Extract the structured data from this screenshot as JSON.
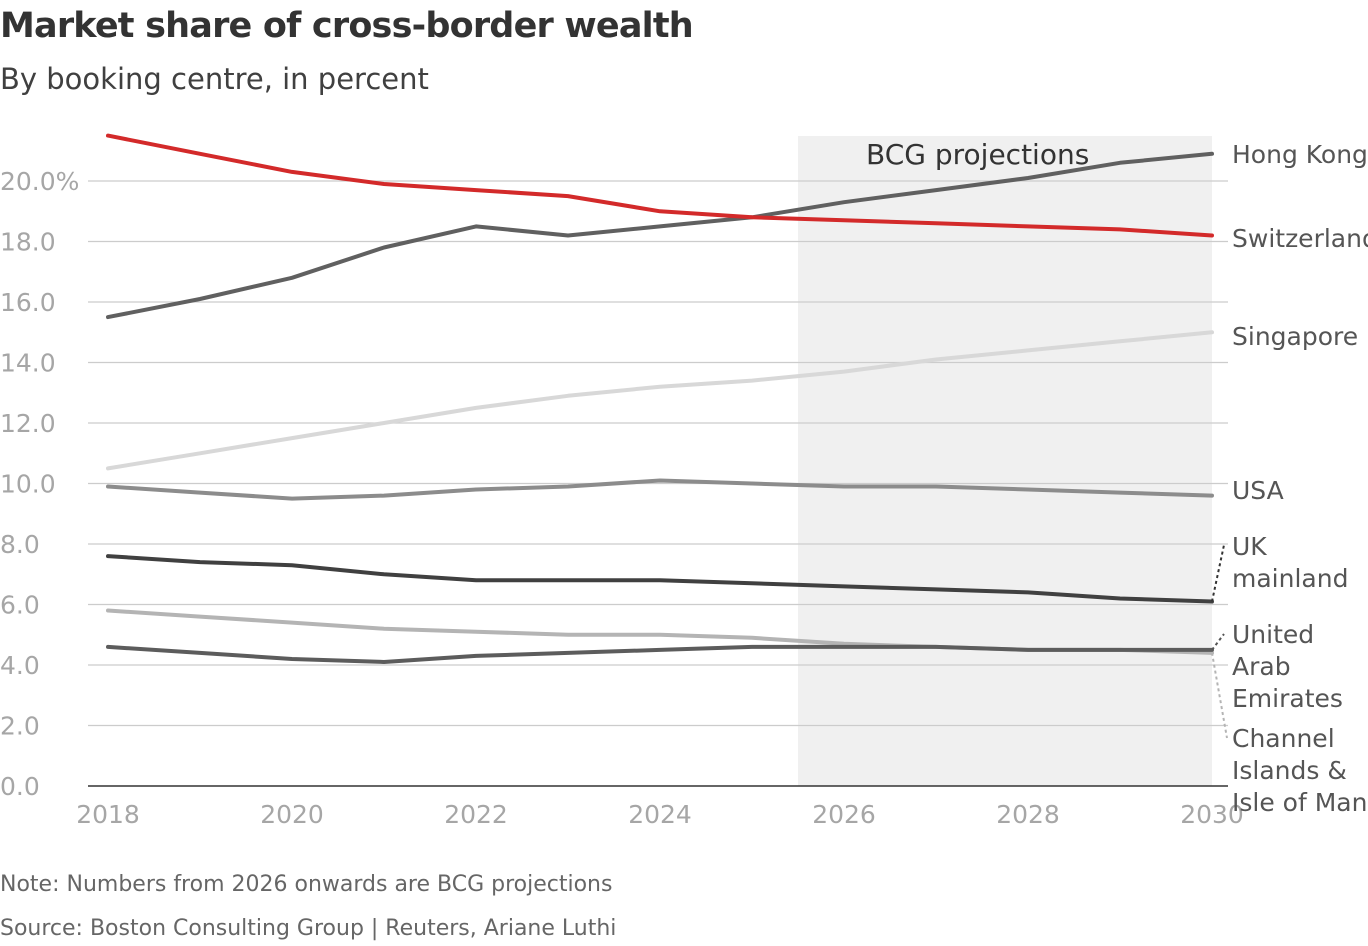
{
  "title": "Market share of cross-border wealth",
  "subtitle": "By booking centre, in percent",
  "note": "Note: Numbers from 2026 onwards are BCG projections",
  "source": "Source: Boston Consulting Group | Reuters, Ariane Luthi",
  "chart_data": {
    "type": "line",
    "x": [
      2018,
      2019,
      2020,
      2021,
      2022,
      2023,
      2024,
      2025,
      2026,
      2027,
      2028,
      2029,
      2030
    ],
    "x_ticks": [
      "2018",
      "2020",
      "2022",
      "2024",
      "2026",
      "2028",
      "2030"
    ],
    "y_ticks": [
      "0.0",
      "2.0",
      "4.0",
      "6.0",
      "8.0",
      "10.0",
      "12.0",
      "14.0",
      "16.0",
      "18.0",
      "20.0%"
    ],
    "ylim": [
      0,
      20.7
    ],
    "xlim": [
      2018,
      2030
    ],
    "grid": true,
    "projection_band": {
      "from": 2025.5,
      "to": 2030,
      "label": "BCG projections",
      "color": "#f0f0f0"
    },
    "series": [
      {
        "name": "Hong Kong",
        "color": "#606060",
        "values": [
          15.5,
          16.1,
          16.8,
          17.8,
          18.5,
          18.2,
          18.5,
          18.8,
          19.3,
          19.7,
          20.1,
          20.6,
          20.9
        ]
      },
      {
        "name": "Switzerland",
        "color": "#d32a2a",
        "values": [
          21.5,
          20.9,
          20.3,
          19.9,
          19.7,
          19.5,
          19.0,
          18.8,
          18.7,
          18.6,
          18.5,
          18.4,
          18.2
        ]
      },
      {
        "name": "Singapore",
        "color": "#d8d8d8",
        "values": [
          10.5,
          11.0,
          11.5,
          12.0,
          12.5,
          12.9,
          13.2,
          13.4,
          13.7,
          14.1,
          14.4,
          14.7,
          15.0
        ]
      },
      {
        "name": "USA",
        "color": "#8c8c8c",
        "values": [
          9.9,
          9.7,
          9.5,
          9.6,
          9.8,
          9.9,
          10.1,
          10.0,
          9.9,
          9.9,
          9.8,
          9.7,
          9.6
        ]
      },
      {
        "name": "UK mainland",
        "color": "#404040",
        "values": [
          7.6,
          7.4,
          7.3,
          7.0,
          6.8,
          6.8,
          6.8,
          6.7,
          6.6,
          6.5,
          6.4,
          6.2,
          6.1
        ]
      },
      {
        "name": "Channel Islands & Isle of Man",
        "color": "#b4b4b4",
        "values": [
          5.8,
          5.6,
          5.4,
          5.2,
          5.1,
          5.0,
          5.0,
          4.9,
          4.7,
          4.6,
          4.5,
          4.5,
          4.4
        ]
      },
      {
        "name": "United Arab Emirates",
        "color": "#5c5c5c",
        "values": [
          4.6,
          4.4,
          4.2,
          4.1,
          4.3,
          4.4,
          4.5,
          4.6,
          4.6,
          4.6,
          4.5,
          4.5,
          4.5
        ]
      }
    ],
    "labels": [
      {
        "series": "Hong Kong",
        "lines": [
          "Hong Kong"
        ]
      },
      {
        "series": "Switzerland",
        "lines": [
          "Switzerland"
        ]
      },
      {
        "series": "Singapore",
        "lines": [
          "Singapore"
        ]
      },
      {
        "series": "USA",
        "lines": [
          "USA"
        ]
      },
      {
        "series": "UK mainland",
        "lines": [
          "UK",
          "mainland"
        ]
      },
      {
        "series": "United Arab Emirates",
        "lines": [
          "United",
          "Arab",
          "Emirates"
        ]
      },
      {
        "series": "Channel Islands & Isle of Man",
        "lines": [
          "Channel",
          "Islands &",
          "Isle of Man"
        ]
      }
    ]
  }
}
